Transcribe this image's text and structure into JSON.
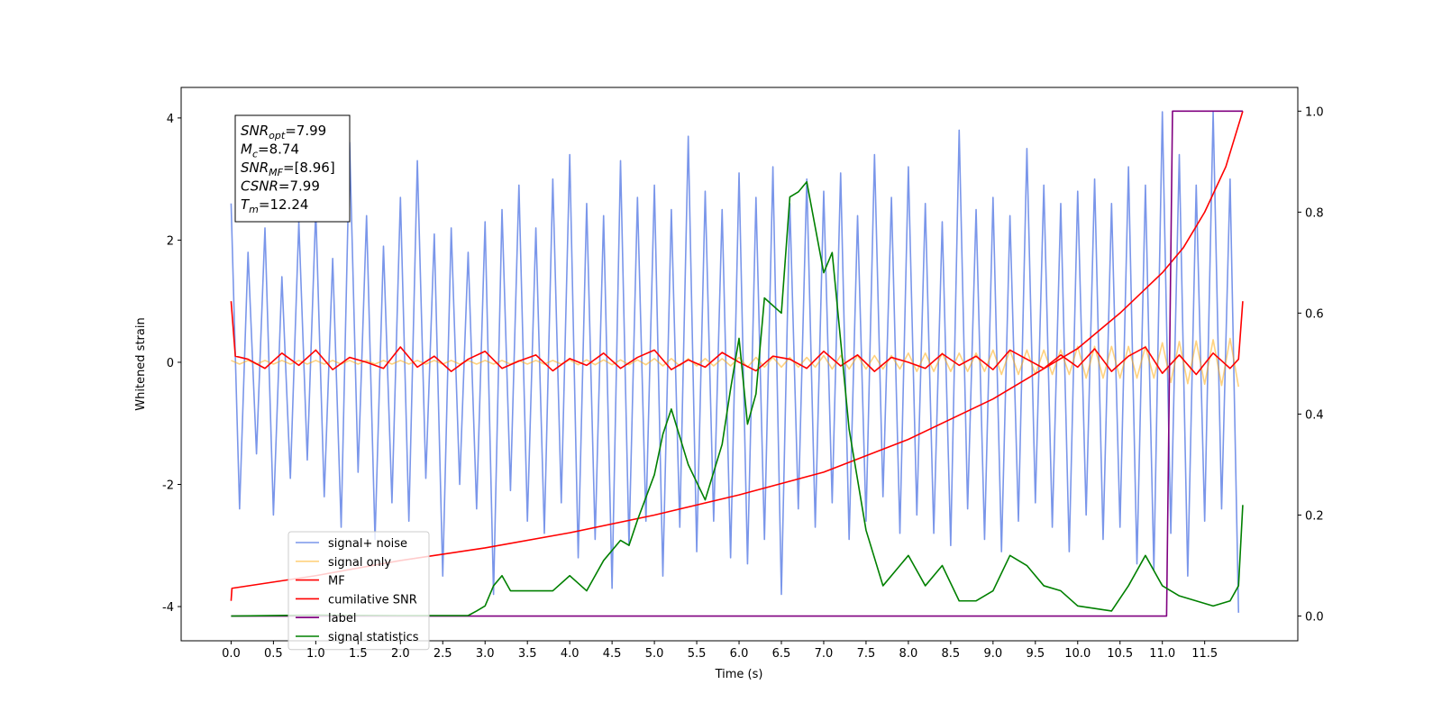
{
  "chart_data": {
    "type": "line",
    "xlabel": "Time (s)",
    "ylabel": "Whitened strain",
    "xlim": [
      -0.59,
      12.6
    ],
    "ylim": [
      -4.56,
      4.5
    ],
    "y2lim": [
      -0.049,
      1.047
    ],
    "xticks": [
      {
        "value": 0,
        "label": "0.0"
      },
      0.5,
      {
        "value": 1,
        "label": "1.0"
      },
      1.5,
      {
        "value": 2,
        "label": "2.0"
      },
      2.5,
      {
        "value": 3,
        "label": "3.0"
      },
      3.5,
      {
        "value": 4,
        "label": "4.0"
      },
      4.5,
      {
        "value": 5,
        "label": "5.0"
      },
      5.5,
      {
        "value": 6,
        "label": "6.0"
      },
      6.5,
      {
        "value": 7,
        "label": "7.0"
      },
      7.5,
      {
        "value": 8,
        "label": "8.0"
      },
      8.5,
      {
        "value": 9,
        "label": "9.0"
      },
      9.5,
      {
        "value": 10,
        "label": "10.0"
      },
      10.5,
      {
        "value": 11,
        "label": "11.0"
      },
      11.5
    ],
    "yticks": [
      -4,
      -2,
      0,
      2,
      4
    ],
    "y2ticks": [
      {
        "value": 0,
        "label": "0.0"
      },
      0.2,
      0.4,
      0.6,
      0.8,
      {
        "value": 1,
        "label": "1.0"
      }
    ],
    "legend": "lower left",
    "annotations": [
      {
        "main": "SNR",
        "sub": "opt",
        "rest": "=7.99"
      },
      {
        "main": "M",
        "sub": "c",
        "rest": "=8.74"
      },
      {
        "main": "SNR",
        "sub": "MF",
        "rest": "=[8.96]"
      },
      {
        "main": "CSNR",
        "sub": "",
        "rest": "=7.99"
      },
      {
        "main": "T",
        "sub": "m",
        "rest": "=12.24"
      }
    ],
    "x": [
      0,
      0.1,
      0.2,
      0.3,
      0.4,
      0.5,
      0.6,
      0.7,
      0.8,
      0.9,
      1,
      1.1,
      1.2,
      1.3,
      1.4,
      1.5,
      1.6,
      1.7,
      1.8,
      1.9,
      2,
      2.1,
      2.2,
      2.3,
      2.4,
      2.5,
      2.6,
      2.7,
      2.8,
      2.9,
      3,
      3.1,
      3.2,
      3.3,
      3.4,
      3.5,
      3.6,
      3.7,
      3.8,
      3.9,
      4,
      4.1,
      4.2,
      4.3,
      4.4,
      4.5,
      4.6,
      4.7,
      4.8,
      4.9,
      5,
      5.1,
      5.2,
      5.3,
      5.4,
      5.5,
      5.6,
      5.7,
      5.8,
      5.9,
      6,
      6.1,
      6.2,
      6.3,
      6.4,
      6.5,
      6.6,
      6.7,
      6.8,
      6.9,
      7,
      7.1,
      7.2,
      7.3,
      7.4,
      7.5,
      7.6,
      7.7,
      7.8,
      7.9,
      8,
      8.1,
      8.2,
      8.3,
      8.4,
      8.5,
      8.6,
      8.7,
      8.8,
      8.9,
      9,
      9.1,
      9.2,
      9.3,
      9.4,
      9.5,
      9.6,
      9.7,
      9.8,
      9.9,
      10,
      10.1,
      10.2,
      10.3,
      10.4,
      10.5,
      10.6,
      10.7,
      10.8,
      10.9,
      11,
      11.1,
      11.2,
      11.3,
      11.4,
      11.5,
      11.6,
      11.7,
      11.8,
      11.9
    ],
    "series": [
      {
        "name": "signal+ noise",
        "color": "#4169e1",
        "alpha": 0.7,
        "values": [
          2.6,
          -2.4,
          1.8,
          -1.5,
          2.2,
          -2.5,
          1.4,
          -1.9,
          2.3,
          -1.6,
          2.5,
          -2.2,
          1.7,
          -2.7,
          3.6,
          -1.8,
          2.4,
          -2.9,
          1.9,
          -2.3,
          2.7,
          -2.6,
          3.3,
          -1.9,
          2.1,
          -3.5,
          2.2,
          -2.0,
          1.8,
          -2.4,
          2.3,
          -3.8,
          2.5,
          -2.1,
          2.9,
          -2.6,
          2.2,
          -2.8,
          3.0,
          -2.3,
          3.4,
          -3.2,
          2.6,
          -2.9,
          2.4,
          -3.7,
          3.3,
          -3.0,
          2.7,
          -2.6,
          2.9,
          -3.5,
          2.5,
          -2.7,
          3.7,
          -3.1,
          2.8,
          -2.6,
          2.5,
          -3.2,
          3.1,
          -3.3,
          2.7,
          -2.9,
          3.2,
          -3.8,
          2.6,
          -2.4,
          3.0,
          -2.7,
          2.8,
          -2.3,
          3.1,
          -2.9,
          2.4,
          -2.6,
          3.4,
          -2.2,
          2.7,
          -2.8,
          3.2,
          -2.5,
          2.6,
          -2.8,
          2.3,
          -3.0,
          3.8,
          -2.4,
          2.5,
          -2.9,
          2.7,
          -3.1,
          2.4,
          -2.6,
          3.5,
          -2.3,
          2.9,
          -2.7,
          2.6,
          -3.1,
          2.8,
          -2.5,
          3.0,
          -2.9,
          2.6,
          -2.7,
          3.2,
          -3.3,
          2.9,
          -3.4,
          4.1,
          -2.8,
          3.4,
          -3.5,
          2.9,
          -2.6,
          4.1,
          -2.4,
          3.0,
          -4.1
        ]
      },
      {
        "name": "signal only",
        "color": "#ffa500",
        "alpha": 0.5,
        "values": [
          0.03,
          -0.03,
          0.03,
          -0.03,
          0.03,
          -0.03,
          0.03,
          -0.03,
          0.03,
          -0.03,
          0.03,
          -0.03,
          0.03,
          -0.03,
          0.03,
          -0.03,
          0.03,
          -0.03,
          0.03,
          -0.03,
          0.03,
          -0.03,
          0.03,
          -0.03,
          0.03,
          -0.03,
          0.03,
          -0.03,
          0.03,
          -0.03,
          0.03,
          -0.03,
          0.03,
          -0.03,
          0.03,
          -0.03,
          0.03,
          -0.03,
          0.03,
          -0.03,
          0.04,
          -0.04,
          0.04,
          -0.04,
          0.04,
          -0.04,
          0.04,
          -0.04,
          0.04,
          -0.04,
          0.06,
          -0.06,
          0.06,
          -0.06,
          0.06,
          -0.06,
          0.06,
          -0.06,
          0.06,
          -0.06,
          0.08,
          -0.08,
          0.08,
          -0.08,
          0.08,
          -0.08,
          0.08,
          -0.08,
          0.08,
          -0.08,
          0.11,
          -0.11,
          0.11,
          -0.11,
          0.11,
          -0.11,
          0.11,
          -0.11,
          0.11,
          -0.11,
          0.15,
          -0.15,
          0.15,
          -0.15,
          0.15,
          -0.15,
          0.15,
          -0.15,
          0.15,
          -0.15,
          0.2,
          -0.2,
          0.2,
          -0.2,
          0.2,
          -0.2,
          0.2,
          -0.2,
          0.2,
          -0.2,
          0.26,
          -0.26,
          0.26,
          -0.26,
          0.26,
          -0.26,
          0.26,
          -0.26,
          0.26,
          -0.26,
          0.32,
          -0.33,
          0.34,
          -0.35,
          0.35,
          -0.36,
          0.37,
          -0.38,
          0.39,
          -0.4
        ]
      },
      {
        "name": "MF",
        "color": "#ff0000",
        "x": [
          0,
          0.05,
          0.2,
          0.4,
          0.6,
          0.8,
          1,
          1.2,
          1.4,
          1.6,
          1.8,
          2,
          2.2,
          2.4,
          2.6,
          2.8,
          3,
          3.2,
          3.4,
          3.6,
          3.8,
          4,
          4.2,
          4.4,
          4.6,
          4.8,
          5,
          5.2,
          5.4,
          5.6,
          5.8,
          6,
          6.2,
          6.4,
          6.6,
          6.8,
          7,
          7.2,
          7.4,
          7.6,
          7.8,
          8,
          8.2,
          8.4,
          8.6,
          8.8,
          9,
          9.2,
          9.4,
          9.6,
          9.8,
          10,
          10.2,
          10.4,
          10.6,
          10.8,
          11,
          11.2,
          11.4,
          11.6,
          11.8,
          11.9,
          11.95
        ],
        "values": [
          1.0,
          0.1,
          0.05,
          -0.1,
          0.15,
          -0.05,
          0.2,
          -0.12,
          0.08,
          0.0,
          -0.1,
          0.25,
          -0.08,
          0.1,
          -0.15,
          0.05,
          0.18,
          -0.1,
          0.02,
          0.12,
          -0.14,
          0.06,
          -0.05,
          0.15,
          -0.1,
          0.08,
          0.2,
          -0.12,
          0.04,
          -0.08,
          0.16,
          0.0,
          -0.14,
          0.1,
          0.05,
          -0.1,
          0.18,
          -0.06,
          0.12,
          -0.15,
          0.08,
          0.0,
          -0.1,
          0.14,
          -0.05,
          0.1,
          -0.12,
          0.2,
          0.05,
          -0.1,
          0.12,
          -0.08,
          0.22,
          -0.15,
          0.1,
          0.25,
          -0.18,
          0.12,
          -0.2,
          0.15,
          -0.1,
          0.05,
          1.0
        ]
      },
      {
        "name": "cumilative SNR",
        "color": "#ff0000",
        "axis": "y2",
        "x": [
          0,
          0.01,
          1,
          2,
          3,
          4,
          5,
          6,
          7,
          8,
          9,
          10,
          10.5,
          11,
          11.25,
          11.5,
          11.75,
          11.95
        ],
        "values": [
          0.03,
          0.055,
          0.08,
          0.11,
          0.135,
          0.165,
          0.2,
          0.24,
          0.285,
          0.35,
          0.43,
          0.53,
          0.6,
          0.68,
          0.73,
          0.8,
          0.89,
          1.0
        ]
      },
      {
        "name": "label",
        "color": "#800080",
        "axis": "y2",
        "x": [
          0,
          11.05,
          11.12,
          11.95
        ],
        "values": [
          0,
          0,
          1,
          1
        ]
      },
      {
        "name": "signal statistics",
        "color": "#008000",
        "axis": "y2",
        "x": [
          0,
          1,
          2,
          2.8,
          2.9,
          3.0,
          3.1,
          3.2,
          3.3,
          3.4,
          3.6,
          3.8,
          4.0,
          4.2,
          4.4,
          4.6,
          4.7,
          4.8,
          5.0,
          5.1,
          5.2,
          5.4,
          5.6,
          5.8,
          5.9,
          6.0,
          6.1,
          6.2,
          6.3,
          6.5,
          6.6,
          6.7,
          6.8,
          7.0,
          7.1,
          7.3,
          7.5,
          7.7,
          7.9,
          8.0,
          8.2,
          8.4,
          8.6,
          8.8,
          9.0,
          9.2,
          9.4,
          9.6,
          9.8,
          10.0,
          10.4,
          10.6,
          10.8,
          11.0,
          11.2,
          11.4,
          11.6,
          11.8,
          11.9,
          11.95
        ],
        "values": [
          0,
          0.002,
          0.001,
          0.001,
          0.01,
          0.02,
          0.06,
          0.08,
          0.05,
          0.05,
          0.05,
          0.05,
          0.08,
          0.05,
          0.11,
          0.15,
          0.14,
          0.19,
          0.28,
          0.36,
          0.41,
          0.3,
          0.23,
          0.34,
          0.45,
          0.55,
          0.38,
          0.44,
          0.63,
          0.6,
          0.83,
          0.84,
          0.86,
          0.68,
          0.72,
          0.37,
          0.17,
          0.06,
          0.1,
          0.12,
          0.06,
          0.1,
          0.03,
          0.03,
          0.05,
          0.12,
          0.1,
          0.06,
          0.05,
          0.02,
          0.01,
          0.06,
          0.12,
          0.06,
          0.04,
          0.03,
          0.02,
          0.03,
          0.06,
          0.22
        ]
      }
    ]
  }
}
